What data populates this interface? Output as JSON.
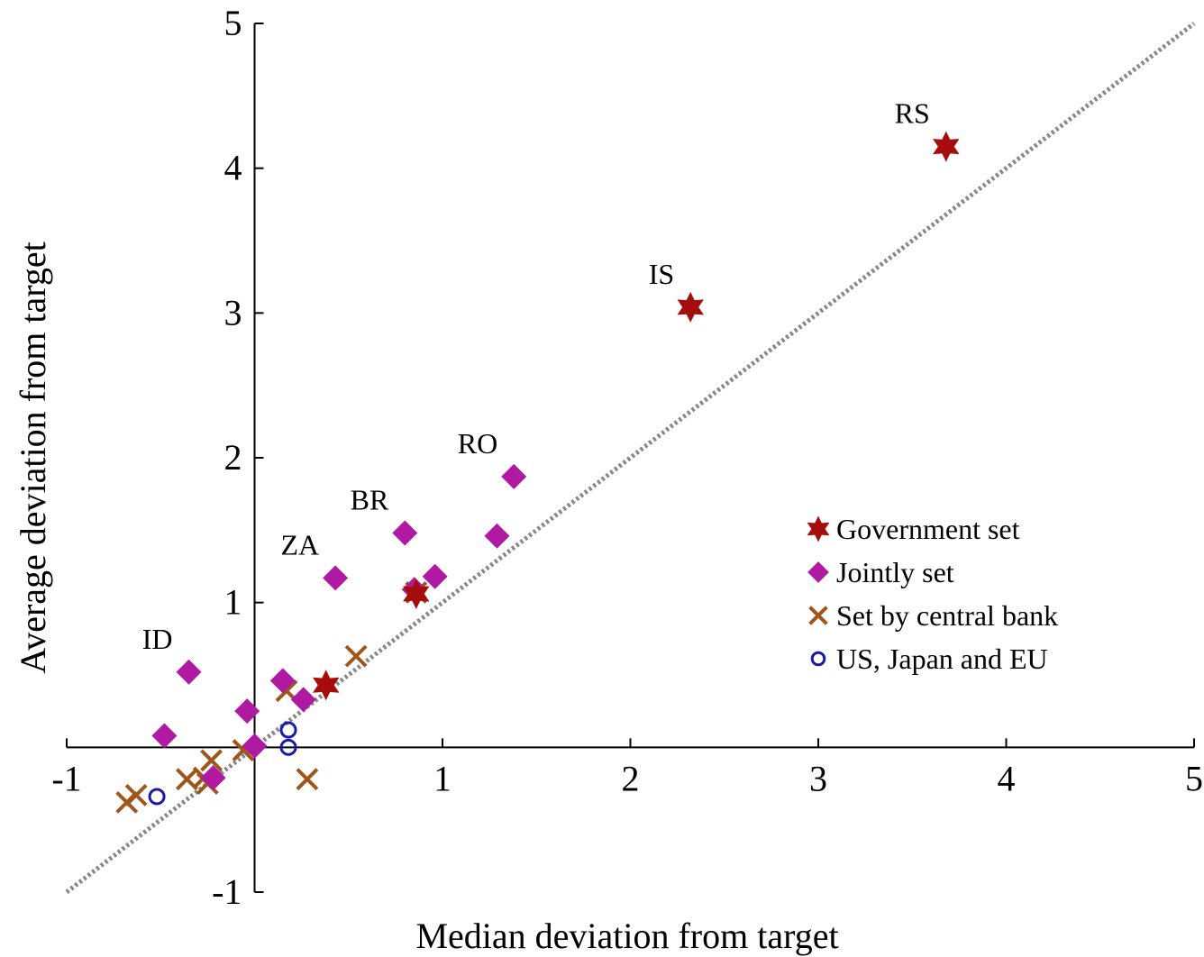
{
  "chart_data": {
    "type": "scatter",
    "title": "",
    "xlabel": "Median deviation from target",
    "ylabel": "Average deviation from target",
    "xlim": [
      -1,
      5
    ],
    "ylim": [
      -1,
      5
    ],
    "xticks": [
      "-1",
      "1",
      "2",
      "3",
      "4",
      "5"
    ],
    "yticks": [
      "-1",
      "1",
      "2",
      "3",
      "4",
      "5"
    ],
    "grid": false,
    "legend_position": "center-right",
    "reference_line": {
      "style": "dotted",
      "color": "#888888",
      "x": [
        -1,
        5
      ],
      "y": [
        -1,
        5
      ]
    },
    "series": [
      {
        "name": "Government set",
        "marker": "star",
        "color": "#a50d0d",
        "x": [
          3.68,
          2.32,
          0.38,
          0.86
        ],
        "y": [
          4.15,
          3.04,
          0.43,
          1.06
        ]
      },
      {
        "name": "Jointly set",
        "marker": "diamond",
        "color": "#b01aa3",
        "x": [
          1.38,
          1.29,
          0.8,
          0.85,
          0.96,
          0.43,
          -0.35,
          -0.48,
          -0.04,
          0.15,
          0.26,
          0.0,
          -0.22
        ],
        "y": [
          1.87,
          1.46,
          1.48,
          1.09,
          1.18,
          1.17,
          0.52,
          0.08,
          0.25,
          0.46,
          0.33,
          0.01,
          -0.21
        ]
      },
      {
        "name": "Set by central bank",
        "marker": "x",
        "color": "#a05519",
        "x": [
          0.54,
          0.17,
          0.86,
          -0.06,
          -0.23,
          -0.27,
          -0.36,
          -0.25,
          -0.63,
          -0.68,
          0.28
        ],
        "y": [
          0.63,
          0.39,
          1.07,
          -0.02,
          -0.09,
          -0.21,
          -0.22,
          -0.25,
          -0.33,
          -0.38,
          -0.22
        ]
      },
      {
        "name": "US, Japan and EU",
        "marker": "circle-open",
        "color": "#1a1aaa",
        "x": [
          0.18,
          0.18,
          -0.52
        ],
        "y": [
          0.12,
          0.0,
          -0.34
        ]
      }
    ],
    "annotations": [
      {
        "text": "RS",
        "x": 3.68,
        "y": 4.15
      },
      {
        "text": "IS",
        "x": 2.32,
        "y": 3.04
      },
      {
        "text": "RO",
        "x": 1.38,
        "y": 1.87
      },
      {
        "text": "BR",
        "x": 0.8,
        "y": 1.48
      },
      {
        "text": "ZA",
        "x": 0.43,
        "y": 1.17
      },
      {
        "text": "ID",
        "x": -0.35,
        "y": 0.52
      }
    ]
  }
}
